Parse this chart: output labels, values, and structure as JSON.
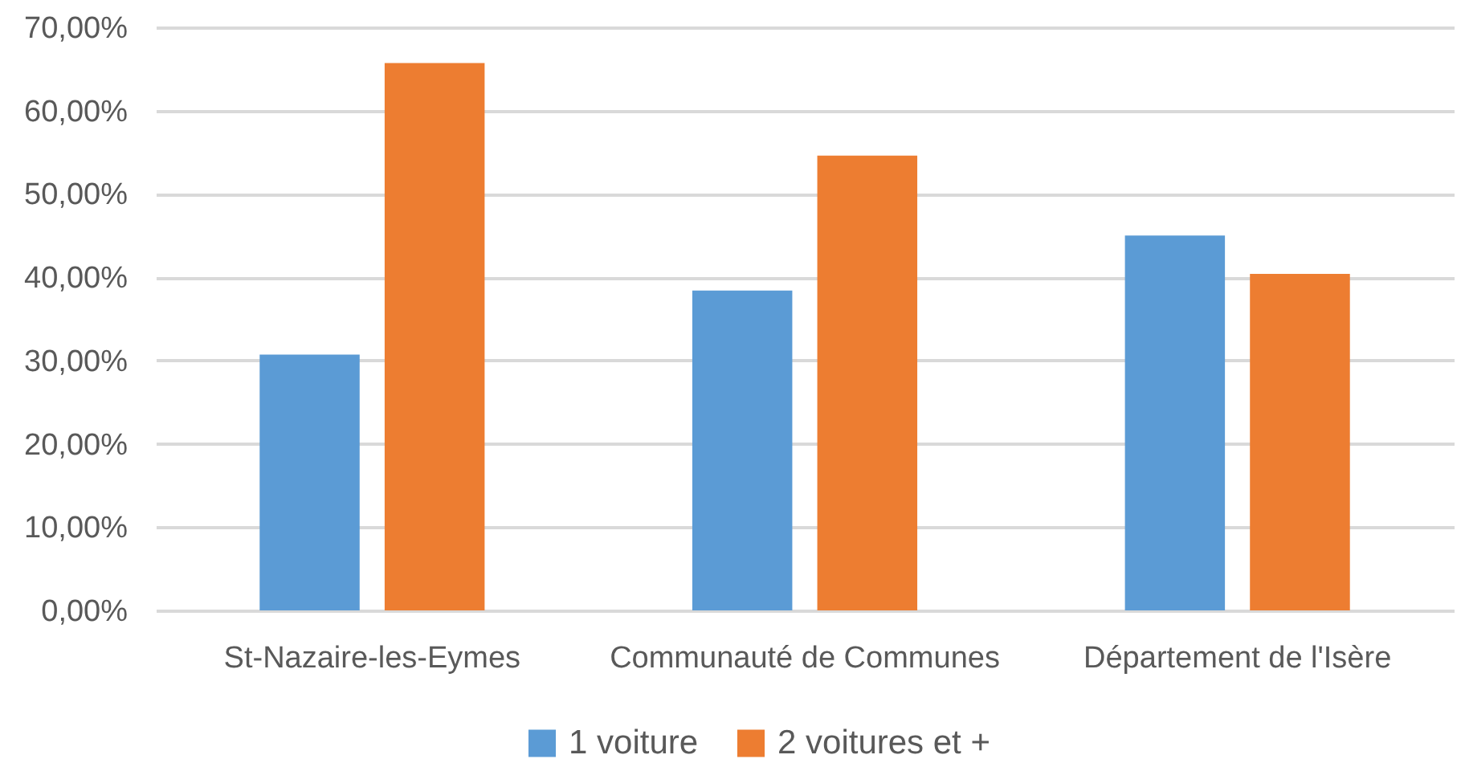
{
  "chart_data": {
    "type": "bar",
    "categories": [
      "St-Nazaire-les-Eymes",
      "Communauté de Communes",
      "Département de l'Isère"
    ],
    "series": [
      {
        "name": "1 voiture",
        "color": "#5b9bd5",
        "values": [
          30.7,
          38.4,
          45.0
        ]
      },
      {
        "name": "2 voitures et +",
        "color": "#ed7d31",
        "values": [
          65.7,
          54.6,
          40.4
        ]
      }
    ],
    "ylim": [
      0,
      70
    ],
    "yticks": [
      {
        "value": 0,
        "label": "0,00%"
      },
      {
        "value": 10,
        "label": "10,00%"
      },
      {
        "value": 20,
        "label": "20,00%"
      },
      {
        "value": 30,
        "label": "30,00%"
      },
      {
        "value": 40,
        "label": "40,00%"
      },
      {
        "value": 50,
        "label": "50,00%"
      },
      {
        "value": 60,
        "label": "60,00%"
      },
      {
        "value": 70,
        "label": "70,00%"
      }
    ],
    "grid": "y",
    "legend": "bottom"
  }
}
